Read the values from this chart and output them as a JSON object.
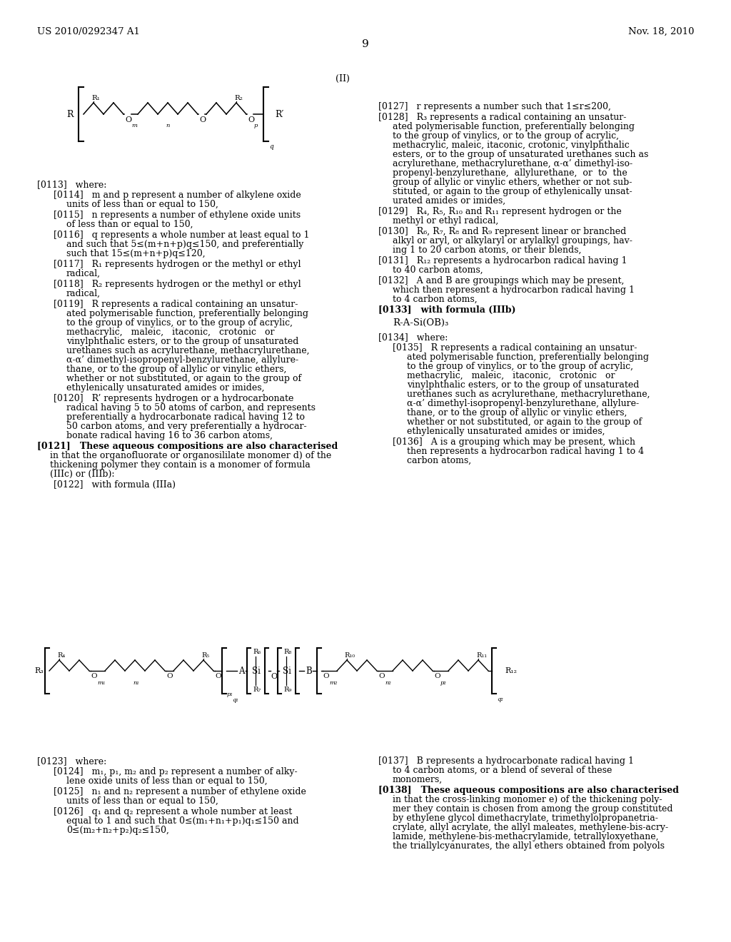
{
  "bg_color": "#ffffff",
  "header_left": "US 2010/0292347 A1",
  "header_right": "Nov. 18, 2010",
  "page_number": "9"
}
